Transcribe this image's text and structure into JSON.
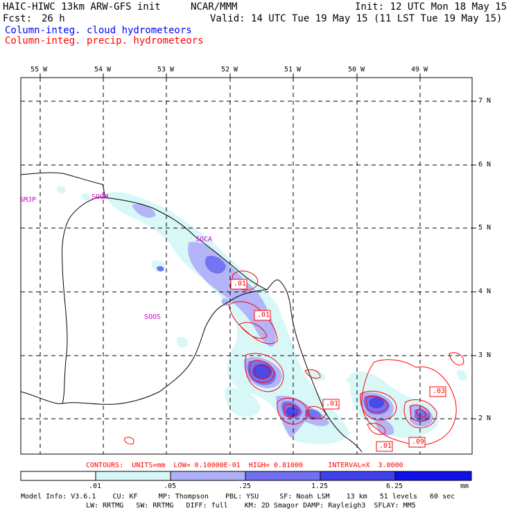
{
  "header": {
    "model": "HAIC-HIWC 13km ARW-GFS init",
    "org": "NCAR/MMM",
    "init": "Init: 12 UTC Mon 18 May 15",
    "fcst_label": "Fcst:",
    "fcst_value": "26 h",
    "valid": "Valid: 14 UTC Tue 19 May 15 (11 LST Tue 19 May 15)",
    "field_cloud": "Column-integ. cloud hydrometeors",
    "field_precip": "Column-integ. precip. hydrometeors"
  },
  "axes": {
    "lon_labels": [
      "55 W",
      "54 W",
      "53 W",
      "52 W",
      "51 W",
      "50 W",
      "49 W"
    ],
    "lat_labels": [
      "7 N",
      "6 N",
      "5 N",
      "4 N",
      "3 N",
      "2 N"
    ]
  },
  "stations": [
    "SMJP",
    "SOGM",
    "SOCA",
    "SOOS"
  ],
  "contour_labels": [
    ".01",
    ".01",
    ".01",
    ".03",
    ".01",
    ".09"
  ],
  "contours_info": {
    "text": "CONTOURS:  UNITS=mm  LOW= 0.10000E-01  HIGH= 0.81000      INTERVAL=X  3.0000"
  },
  "colorbar": {
    "ticks": [
      ".01",
      ".05",
      ".25",
      "1.25",
      "6.25"
    ],
    "unit": "mm",
    "colors": [
      "#ffffff",
      "#d8f8f8",
      "#b0b0f8",
      "#7070f0",
      "#4040e8",
      "#1010e8"
    ]
  },
  "model_info": {
    "line1": "Model Info: V3.6.1    CU: KF     MP: Thompson    PBL: YSU     SF: Noah LSM    13 km   51 levels   60 sec",
    "line2": "LW: RRTMG   SW: RRTMG   DIFF: full    KM: 2D Smagor DAMP: Rayleigh3  SFLAY: MM5"
  }
}
